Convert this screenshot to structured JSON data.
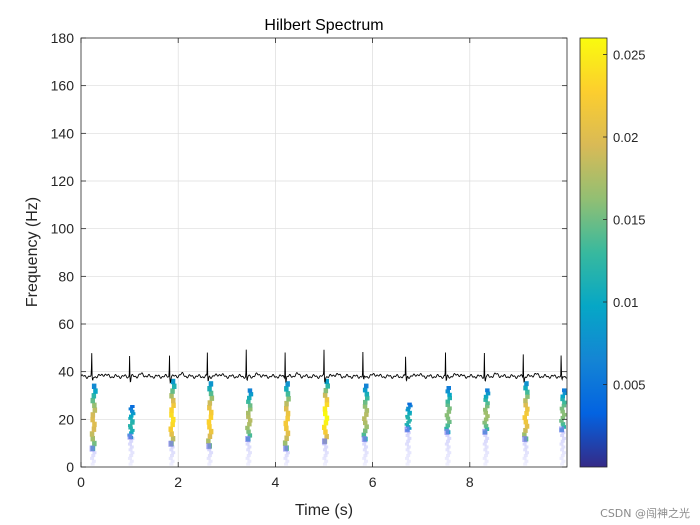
{
  "chart_data": {
    "type": "heatmap",
    "title": "Hilbert Spectrum",
    "xlabel": "Time (s)",
    "ylabel": "Frequency (Hz)",
    "xlim": [
      0,
      10
    ],
    "ylim": [
      0,
      180
    ],
    "xticks": [
      0,
      2,
      4,
      6,
      8
    ],
    "yticks": [
      0,
      20,
      40,
      60,
      80,
      100,
      120,
      140,
      160,
      180
    ],
    "grid": true,
    "colorbar": {
      "colormap": "parula",
      "clim": [
        0,
        0.026
      ],
      "ticks": [
        0.005,
        0.01,
        0.015,
        0.02,
        0.025
      ],
      "tick_labels": [
        "0.005",
        "0.01",
        "0.015",
        "0.02",
        "0.025"
      ]
    },
    "ecg_overlay": {
      "color": "#000000",
      "baseline_hz": 38,
      "r_peaks_s": [
        0.22,
        1.0,
        1.82,
        2.6,
        3.4,
        4.2,
        5.0,
        5.8,
        6.68,
        7.5,
        8.3,
        9.1,
        9.88
      ],
      "peak_top_hz": [
        48,
        47,
        48,
        48,
        49,
        49,
        49,
        48,
        47,
        48,
        48,
        48,
        47
      ]
    },
    "series": [
      {
        "t": 0.24,
        "f_low": 7,
        "f_high": 35,
        "peak": 0.02
      },
      {
        "t": 1.02,
        "f_low": 12,
        "f_high": 26,
        "peak": 0.012
      },
      {
        "t": 1.86,
        "f_low": 9,
        "f_high": 37,
        "peak": 0.024
      },
      {
        "t": 2.64,
        "f_low": 8,
        "f_high": 36,
        "peak": 0.023
      },
      {
        "t": 3.44,
        "f_low": 11,
        "f_high": 33,
        "peak": 0.018
      },
      {
        "t": 4.22,
        "f_low": 7,
        "f_high": 36,
        "peak": 0.022
      },
      {
        "t": 5.02,
        "f_low": 10,
        "f_high": 37,
        "peak": 0.026
      },
      {
        "t": 5.84,
        "f_low": 11,
        "f_high": 35,
        "peak": 0.018
      },
      {
        "t": 6.72,
        "f_low": 15,
        "f_high": 27,
        "peak": 0.012
      },
      {
        "t": 7.54,
        "f_low": 14,
        "f_high": 34,
        "peak": 0.016
      },
      {
        "t": 8.32,
        "f_low": 14,
        "f_high": 33,
        "peak": 0.017
      },
      {
        "t": 9.14,
        "f_low": 11,
        "f_high": 36,
        "peak": 0.022
      },
      {
        "t": 9.9,
        "f_low": 15,
        "f_high": 33,
        "peak": 0.016
      }
    ]
  },
  "watermark": "CSDN @闯神之光"
}
